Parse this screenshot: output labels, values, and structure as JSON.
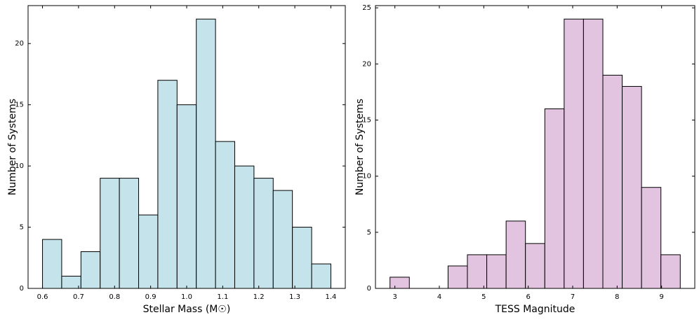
{
  "chart_data": [
    {
      "type": "histogram",
      "xlabel": "Stellar Mass (M☉)",
      "ylabel": "Number of Systems",
      "color": "#c5e3eb",
      "bins": [
        0.6,
        0.6533,
        0.7067,
        0.76,
        0.8133,
        0.8667,
        0.92,
        0.9733,
        1.0267,
        1.08,
        1.1333,
        1.1867,
        1.24,
        1.2933,
        1.3467,
        1.4
      ],
      "values": [
        4,
        1,
        3,
        9,
        9,
        6,
        17,
        15,
        22,
        12,
        10,
        9,
        8,
        5,
        2
      ],
      "xlim": [
        0.56,
        1.44
      ],
      "ylim": [
        0,
        23.1
      ],
      "xticks": [
        0.6,
        0.7,
        0.8,
        0.9,
        {
          "value": 1.0,
          "label": "1.0"
        },
        1.1,
        1.2,
        1.3,
        1.4
      ],
      "yticks": [
        0,
        5,
        10,
        15,
        20
      ]
    },
    {
      "type": "histogram",
      "xlabel": "TESS Magnitude",
      "ylabel": "Number of Systems",
      "color": "#e2c4e0",
      "bins": [
        2.89,
        3.325,
        3.761,
        4.196,
        4.631,
        5.067,
        5.502,
        5.937,
        6.373,
        6.808,
        7.243,
        7.679,
        8.114,
        8.549,
        8.985,
        9.42
      ],
      "values": [
        1,
        0,
        0,
        2,
        3,
        3,
        6,
        4,
        16,
        24,
        24,
        19,
        18,
        9,
        3
      ],
      "xlim": [
        2.563,
        9.747
      ],
      "ylim": [
        0,
        25.2
      ],
      "xticks": [
        3,
        4,
        5,
        6,
        7,
        8,
        9
      ],
      "yticks": [
        0,
        5,
        10,
        15,
        20,
        25
      ]
    }
  ]
}
